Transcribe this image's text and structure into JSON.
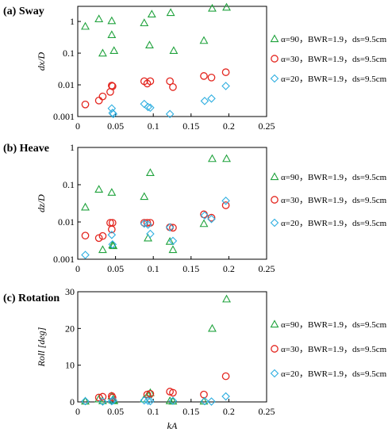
{
  "chart_data": [
    {
      "type": "scatter",
      "title": "(a) Sway",
      "xlabel": "",
      "ylabel": "dx/D",
      "yscale": "log",
      "xlim": [
        0,
        0.25
      ],
      "ylim": [
        0.001,
        3
      ],
      "xticks": [
        "0",
        "0.05",
        "0.1",
        "0.15",
        "0.2",
        "0.25"
      ],
      "yticks": [
        "0.001",
        "0.01",
        "0.1",
        "1"
      ],
      "legend_position": "right",
      "series": [
        {
          "name": "α=90，BWR=1.9，ds=9.5cm",
          "marker": "triangle",
          "color": "#1fa23c",
          "points": [
            [
              0.01,
              0.7
            ],
            [
              0.028,
              1.2
            ],
            [
              0.033,
              0.1
            ],
            [
              0.045,
              0.38
            ],
            [
              0.045,
              1.05
            ],
            [
              0.048,
              0.12
            ],
            [
              0.088,
              0.9
            ],
            [
              0.095,
              0.18
            ],
            [
              0.098,
              1.7
            ],
            [
              0.123,
              1.9
            ],
            [
              0.127,
              0.12
            ],
            [
              0.167,
              0.25
            ],
            [
              0.178,
              2.6
            ],
            [
              0.197,
              2.8
            ]
          ]
        },
        {
          "name": "α=30，BWR=1.9，ds=9.5cm",
          "marker": "circle",
          "color": "#e3261f",
          "points": [
            [
              0.01,
              0.0024
            ],
            [
              0.028,
              0.0032
            ],
            [
              0.033,
              0.0043
            ],
            [
              0.043,
              0.006
            ],
            [
              0.045,
              0.0095
            ],
            [
              0.046,
              0.009
            ],
            [
              0.088,
              0.013
            ],
            [
              0.092,
              0.011
            ],
            [
              0.096,
              0.013
            ],
            [
              0.122,
              0.013
            ],
            [
              0.126,
              0.0085
            ],
            [
              0.167,
              0.019
            ],
            [
              0.177,
              0.017
            ],
            [
              0.196,
              0.025
            ]
          ]
        },
        {
          "name": "α=20，BWR=1.9，ds=9.5cm",
          "marker": "diamond",
          "color": "#2eaee0",
          "points": [
            [
              0.045,
              0.0018
            ],
            [
              0.046,
              0.0013
            ],
            [
              0.047,
              0.0012
            ],
            [
              0.088,
              0.0025
            ],
            [
              0.093,
              0.002
            ],
            [
              0.096,
              0.0019
            ],
            [
              0.122,
              0.0012
            ],
            [
              0.168,
              0.0031
            ],
            [
              0.177,
              0.0037
            ],
            [
              0.196,
              0.0092
            ]
          ]
        }
      ]
    },
    {
      "type": "scatter",
      "title": "(b) Heave",
      "xlabel": "",
      "ylabel": "dz/D",
      "yscale": "log",
      "xlim": [
        0,
        0.25
      ],
      "ylim": [
        0.001,
        1
      ],
      "xticks": [
        "0",
        "0.05",
        "0.1",
        "0.15",
        "0.2",
        "0.25"
      ],
      "yticks": [
        "0.001",
        "0.01",
        "0.1",
        "1"
      ],
      "legend_position": "right",
      "series": [
        {
          "name": "α=90，BWR=1.9，ds=9.5cm",
          "marker": "triangle",
          "color": "#1fa23c",
          "points": [
            [
              0.01,
              0.025
            ],
            [
              0.028,
              0.075
            ],
            [
              0.033,
              0.0018
            ],
            [
              0.045,
              0.062
            ],
            [
              0.046,
              0.0024
            ],
            [
              0.047,
              0.0023
            ],
            [
              0.088,
              0.048
            ],
            [
              0.093,
              0.0037
            ],
            [
              0.096,
              0.21
            ],
            [
              0.122,
              0.003
            ],
            [
              0.126,
              0.0018
            ],
            [
              0.167,
              0.009
            ],
            [
              0.178,
              0.5
            ],
            [
              0.197,
              0.5
            ]
          ]
        },
        {
          "name": "α=30，BWR=1.9，ds=9.5cm",
          "marker": "circle",
          "color": "#e3261f",
          "points": [
            [
              0.01,
              0.0043
            ],
            [
              0.028,
              0.0037
            ],
            [
              0.033,
              0.0042
            ],
            [
              0.043,
              0.0095
            ],
            [
              0.045,
              0.0063
            ],
            [
              0.046,
              0.0095
            ],
            [
              0.088,
              0.0095
            ],
            [
              0.092,
              0.0095
            ],
            [
              0.096,
              0.0095
            ],
            [
              0.122,
              0.0072
            ],
            [
              0.126,
              0.007
            ],
            [
              0.167,
              0.016
            ],
            [
              0.177,
              0.013
            ],
            [
              0.196,
              0.028
            ]
          ]
        },
        {
          "name": "α=20，BWR=1.9，ds=9.5cm",
          "marker": "diamond",
          "color": "#2eaee0",
          "points": [
            [
              0.01,
              0.0013
            ],
            [
              0.045,
              0.0045
            ],
            [
              0.046,
              0.0025
            ],
            [
              0.088,
              0.009
            ],
            [
              0.093,
              0.0085
            ],
            [
              0.096,
              0.0048
            ],
            [
              0.122,
              0.0072
            ],
            [
              0.126,
              0.0031
            ],
            [
              0.168,
              0.015
            ],
            [
              0.177,
              0.012
            ],
            [
              0.196,
              0.037
            ]
          ]
        }
      ]
    },
    {
      "type": "scatter",
      "title": "(c) Rotation",
      "xlabel": "kA",
      "ylabel": "Roll [deg]",
      "yscale": "linear",
      "xlim": [
        0,
        0.25
      ],
      "ylim": [
        0,
        30
      ],
      "xticks": [
        "0",
        "0.05",
        "0.1",
        "0.15",
        "0.2",
        "0.25"
      ],
      "yticks": [
        "0",
        "10",
        "20",
        "30"
      ],
      "legend_position": "right",
      "series": [
        {
          "name": "α=90，BWR=1.9，ds=9.5cm",
          "marker": "triangle",
          "color": "#1fa23c",
          "points": [
            [
              0.01,
              0.2
            ],
            [
              0.028,
              0.8
            ],
            [
              0.033,
              0.3
            ],
            [
              0.045,
              1.6
            ],
            [
              0.046,
              0.5
            ],
            [
              0.048,
              0.3
            ],
            [
              0.088,
              0.8
            ],
            [
              0.093,
              2.0
            ],
            [
              0.096,
              2.5
            ],
            [
              0.122,
              0.3
            ],
            [
              0.126,
              0.2
            ],
            [
              0.167,
              0.2
            ],
            [
              0.178,
              20
            ],
            [
              0.197,
              28
            ]
          ]
        },
        {
          "name": "α=30，BWR=1.9，ds=9.5cm",
          "marker": "circle",
          "color": "#e3261f",
          "points": [
            [
              0.028,
              1.2
            ],
            [
              0.033,
              1.4
            ],
            [
              0.045,
              1.6
            ],
            [
              0.046,
              1.2
            ],
            [
              0.092,
              2.0
            ],
            [
              0.096,
              2.2
            ],
            [
              0.122,
              2.8
            ],
            [
              0.126,
              2.5
            ],
            [
              0.167,
              2.0
            ],
            [
              0.196,
              7.0
            ]
          ]
        },
        {
          "name": "α=20，BWR=1.9，ds=9.5cm",
          "marker": "diamond",
          "color": "#2eaee0",
          "points": [
            [
              0.01,
              0.2
            ],
            [
              0.033,
              0.1
            ],
            [
              0.045,
              0.2
            ],
            [
              0.047,
              0.4
            ],
            [
              0.088,
              0.4
            ],
            [
              0.093,
              0.3
            ],
            [
              0.096,
              0.2
            ],
            [
              0.126,
              0.3
            ],
            [
              0.168,
              0.2
            ],
            [
              0.177,
              0.1
            ],
            [
              0.196,
              1.5
            ]
          ]
        }
      ]
    }
  ]
}
